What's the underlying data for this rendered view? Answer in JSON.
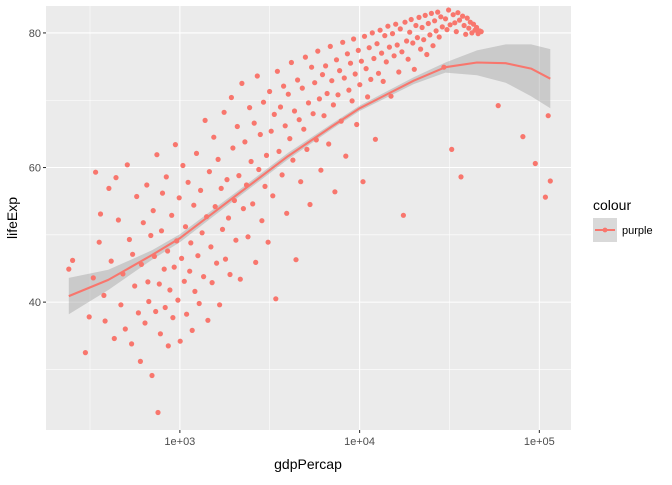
{
  "chart_data": {
    "type": "scatter",
    "title": "",
    "xlabel": "gdpPercap",
    "ylabel": "lifeExp",
    "x_scale": "log10",
    "xlim": [
      180,
      150000
    ],
    "ylim": [
      21,
      84
    ],
    "x_ticks": [
      {
        "value": 1000,
        "label": "1e+03"
      },
      {
        "value": 10000,
        "label": "1e+04"
      },
      {
        "value": 100000,
        "label": "1e+05"
      }
    ],
    "y_ticks": [
      {
        "value": 40,
        "label": "40"
      },
      {
        "value": 60,
        "label": "60"
      },
      {
        "value": 80,
        "label": "80"
      }
    ],
    "grid": true,
    "legend": {
      "title": "colour",
      "entries": [
        "purple"
      ],
      "position": "right"
    },
    "colors": {
      "panel_background": "#ebebeb",
      "grid_major": "#ffffff",
      "point": "#f8766d",
      "smooth_line": "#f8766d",
      "confidence_band": "#999999"
    },
    "series": [
      {
        "color": "#f8766d",
        "points": [
          [
            241,
            44.9
          ],
          [
            253,
            46.2
          ],
          [
            298,
            32.5
          ],
          [
            313,
            37.8
          ],
          [
            330,
            43.6
          ],
          [
            340,
            59.3
          ],
          [
            356,
            48.9
          ],
          [
            362,
            53.1
          ],
          [
            378,
            41.0
          ],
          [
            384,
            37.2
          ],
          [
            403,
            56.9
          ],
          [
            415,
            46.1
          ],
          [
            432,
            34.6
          ],
          [
            441,
            58.5
          ],
          [
            455,
            52.2
          ],
          [
            470,
            39.6
          ],
          [
            482,
            44.2
          ],
          [
            497,
            36.0
          ],
          [
            510,
            60.4
          ],
          [
            524,
            49.3
          ],
          [
            539,
            33.8
          ],
          [
            546,
            47.1
          ],
          [
            561,
            42.4
          ],
          [
            575,
            55.7
          ],
          [
            588,
            38.4
          ],
          [
            603,
            31.2
          ],
          [
            611,
            45.6
          ],
          [
            626,
            51.8
          ],
          [
            640,
            36.9
          ],
          [
            655,
            57.4
          ],
          [
            664,
            43.0
          ],
          [
            672,
            40.1
          ],
          [
            689,
            49.9
          ],
          [
            700,
            29.1
          ],
          [
            711,
            53.6
          ],
          [
            722,
            46.8
          ],
          [
            734,
            38.6
          ],
          [
            745,
            61.9
          ],
          [
            756,
            23.6
          ],
          [
            768,
            42.7
          ],
          [
            779,
            35.3
          ],
          [
            790,
            50.6
          ],
          [
            801,
            56.2
          ],
          [
            818,
            44.9
          ],
          [
            829,
            39.2
          ],
          [
            840,
            58.6
          ],
          [
            855,
            47.6
          ],
          [
            862,
            33.5
          ],
          [
            880,
            41.8
          ],
          [
            901,
            52.9
          ],
          [
            915,
            37.7
          ],
          [
            930,
            45.2
          ],
          [
            945,
            63.4
          ],
          [
            960,
            49.1
          ],
          [
            975,
            40.3
          ],
          [
            992,
            55.5
          ],
          [
            1005,
            34.2
          ],
          [
            1023,
            46.5
          ],
          [
            1040,
            60.3
          ],
          [
            1058,
            43.1
          ],
          [
            1075,
            51.2
          ],
          [
            1090,
            38.2
          ],
          [
            1112,
            57.8
          ],
          [
            1134,
            44.6
          ],
          [
            1150,
            48.8
          ],
          [
            1172,
            35.8
          ],
          [
            1195,
            54.4
          ],
          [
            1212,
            41.6
          ],
          [
            1238,
            62.1
          ],
          [
            1260,
            46.9
          ],
          [
            1281,
            39.8
          ],
          [
            1305,
            56.6
          ],
          [
            1330,
            50.3
          ],
          [
            1355,
            43.8
          ],
          [
            1382,
            67.0
          ],
          [
            1408,
            52.7
          ],
          [
            1432,
            37.3
          ],
          [
            1460,
            59.4
          ],
          [
            1488,
            48.2
          ],
          [
            1512,
            42.9
          ],
          [
            1544,
            64.5
          ],
          [
            1573,
            54.2
          ],
          [
            1601,
            45.8
          ],
          [
            1632,
            61.2
          ],
          [
            1663,
            39.6
          ],
          [
            1698,
            56.9
          ],
          [
            1727,
            50.8
          ],
          [
            1762,
            68.2
          ],
          [
            1795,
            46.4
          ],
          [
            1830,
            58.2
          ],
          [
            1864,
            52.5
          ],
          [
            1901,
            44.1
          ],
          [
            1935,
            70.4
          ],
          [
            1972,
            62.9
          ],
          [
            2010,
            55.1
          ],
          [
            2050,
            49.2
          ],
          [
            2088,
            66.1
          ],
          [
            2131,
            58.8
          ],
          [
            2170,
            43.4
          ],
          [
            2215,
            72.5
          ],
          [
            2258,
            53.9
          ],
          [
            2302,
            63.8
          ],
          [
            2349,
            57.4
          ],
          [
            2394,
            49.7
          ],
          [
            2443,
            68.9
          ],
          [
            2490,
            60.9
          ],
          [
            2541,
            54.6
          ],
          [
            2591,
            66.6
          ],
          [
            2642,
            45.9
          ],
          [
            2696,
            73.6
          ],
          [
            2750,
            59.7
          ],
          [
            2804,
            64.9
          ],
          [
            2861,
            52.1
          ],
          [
            2918,
            69.7
          ],
          [
            2975,
            57.2
          ],
          [
            3035,
            61.8
          ],
          [
            3097,
            48.9
          ],
          [
            3158,
            71.3
          ],
          [
            3222,
            65.4
          ],
          [
            3287,
            55.8
          ],
          [
            3352,
            67.9
          ],
          [
            3419,
            40.5
          ],
          [
            3489,
            74.3
          ],
          [
            3559,
            62.4
          ],
          [
            3630,
            69.0
          ],
          [
            3703,
            58.9
          ],
          [
            3777,
            72.1
          ],
          [
            3853,
            66.2
          ],
          [
            3931,
            53.2
          ],
          [
            4010,
            70.9
          ],
          [
            4090,
            64.3
          ],
          [
            4173,
            75.6
          ],
          [
            4256,
            61.1
          ],
          [
            4342,
            68.4
          ],
          [
            4429,
            46.3
          ],
          [
            4518,
            73.0
          ],
          [
            4610,
            67.1
          ],
          [
            4702,
            57.9
          ],
          [
            4797,
            71.8
          ],
          [
            4893,
            65.7
          ],
          [
            4992,
            76.4
          ],
          [
            5092,
            62.7
          ],
          [
            5195,
            69.6
          ],
          [
            5300,
            54.5
          ],
          [
            5407,
            74.9
          ],
          [
            5515,
            68.0
          ],
          [
            5627,
            72.6
          ],
          [
            5740,
            64.1
          ],
          [
            5855,
            77.3
          ],
          [
            5974,
            70.2
          ],
          [
            6094,
            59.6
          ],
          [
            6215,
            73.8
          ],
          [
            6340,
            67.7
          ],
          [
            6468,
            75.1
          ],
          [
            6598,
            71.0
          ],
          [
            6731,
            63.5
          ],
          [
            6866,
            78.0
          ],
          [
            7005,
            72.9
          ],
          [
            7146,
            69.3
          ],
          [
            7290,
            56.4
          ],
          [
            7436,
            76.0
          ],
          [
            7586,
            70.8
          ],
          [
            7740,
            74.4
          ],
          [
            7895,
            66.9
          ],
          [
            8055,
            78.6
          ],
          [
            8217,
            73.3
          ],
          [
            8382,
            61.7
          ],
          [
            8551,
            76.9
          ],
          [
            8724,
            71.5
          ],
          [
            8900,
            75.5
          ],
          [
            9079,
            69.9
          ],
          [
            9262,
            79.1
          ],
          [
            9449,
            73.9
          ],
          [
            9639,
            66.4
          ],
          [
            9833,
            77.4
          ],
          [
            10030,
            72.3
          ],
          [
            10234,
            75.8
          ],
          [
            10440,
            57.9
          ],
          [
            10650,
            79.5
          ],
          [
            10865,
            74.7
          ],
          [
            11084,
            70.5
          ],
          [
            11307,
            77.8
          ],
          [
            11535,
            73.1
          ],
          [
            11767,
            80.0
          ],
          [
            12004,
            76.2
          ],
          [
            12246,
            64.2
          ],
          [
            12493,
            78.4
          ],
          [
            12745,
            74.0
          ],
          [
            13001,
            80.4
          ],
          [
            13263,
            77.0
          ],
          [
            13530,
            72.8
          ],
          [
            13803,
            79.6
          ],
          [
            14081,
            75.7
          ],
          [
            14364,
            81.0
          ],
          [
            14654,
            77.9
          ],
          [
            14949,
            70.6
          ],
          [
            15250,
            79.9
          ],
          [
            15557,
            76.6
          ],
          [
            15870,
            81.3
          ],
          [
            16190,
            78.2
          ],
          [
            16516,
            74.2
          ],
          [
            16849,
            80.6
          ],
          [
            17188,
            77.2
          ],
          [
            17534,
            52.9
          ],
          [
            17887,
            81.6
          ],
          [
            18247,
            78.8
          ],
          [
            18615,
            76.1
          ],
          [
            18990,
            80.1
          ],
          [
            19372,
            82.0
          ],
          [
            19762,
            78.5
          ],
          [
            20160,
            74.6
          ],
          [
            20566,
            81.1
          ],
          [
            20980,
            79.3
          ],
          [
            21402,
            82.3
          ],
          [
            21833,
            77.6
          ],
          [
            22272,
            80.8
          ],
          [
            22721,
            79.0
          ],
          [
            23178,
            82.6
          ],
          [
            23645,
            76.8
          ],
          [
            24121,
            81.4
          ],
          [
            24606,
            79.7
          ],
          [
            25102,
            82.9
          ],
          [
            25607,
            78.1
          ],
          [
            26122,
            81.8
          ],
          [
            26648,
            80.3
          ],
          [
            27185,
            83.1
          ],
          [
            27732,
            79.4
          ],
          [
            28290,
            82.4
          ],
          [
            28860,
            80.9
          ],
          [
            29441,
            74.9
          ],
          [
            30034,
            82.1
          ],
          [
            30638,
            80.5
          ],
          [
            31255,
            83.4
          ],
          [
            31884,
            81.2
          ],
          [
            32526,
            62.7
          ],
          [
            33181,
            82.7
          ],
          [
            33849,
            81.5
          ],
          [
            34530,
            80.2
          ],
          [
            35226,
            83.0
          ],
          [
            35935,
            81.9
          ],
          [
            36658,
            58.6
          ],
          [
            37396,
            82.5
          ],
          [
            38149,
            81.1
          ],
          [
            38917,
            79.8
          ],
          [
            39700,
            82.2
          ],
          [
            40500,
            80.7
          ],
          [
            41315,
            81.6
          ],
          [
            42146,
            80.0
          ],
          [
            42995,
            81.3
          ],
          [
            43860,
            80.4
          ],
          [
            44743,
            80.8
          ],
          [
            45644,
            79.9
          ],
          [
            46563,
            80.3
          ],
          [
            47500,
            80.2
          ],
          [
            59000,
            69.2
          ],
          [
            81000,
            64.6
          ],
          [
            95000,
            60.6
          ],
          [
            108000,
            55.6
          ],
          [
            112000,
            67.7
          ],
          [
            115000,
            58.0
          ]
        ]
      }
    ],
    "smooth": {
      "x": [
        241,
        400,
        700,
        1000,
        2000,
        4000,
        7000,
        10000,
        20000,
        30000,
        45000,
        65000,
        90000,
        115000
      ],
      "y": [
        40.9,
        43.3,
        47.0,
        49.5,
        55.6,
        61.7,
        66.1,
        68.8,
        72.9,
        74.9,
        75.6,
        75.5,
        74.7,
        73.2
      ],
      "lower": [
        38.2,
        41.8,
        46.3,
        48.9,
        55.1,
        61.2,
        65.7,
        68.4,
        72.4,
        74.1,
        73.7,
        72.6,
        70.6,
        68.8
      ],
      "upper": [
        43.6,
        44.8,
        47.7,
        50.1,
        56.1,
        62.2,
        66.5,
        69.2,
        73.4,
        75.6,
        77.4,
        78.3,
        78.3,
        77.6
      ]
    }
  }
}
